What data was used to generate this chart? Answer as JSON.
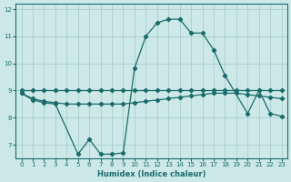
{
  "xlabel": "Humidex (Indice chaleur)",
  "background_color": "#cce9e8",
  "grid_color": "#a0c8c8",
  "line_color": "#1a6b6b",
  "ylim": [
    6.5,
    12.2
  ],
  "xlim": [
    -0.5,
    23.5
  ],
  "yticks": [
    7,
    8,
    9,
    10,
    11,
    12
  ],
  "xticks": [
    0,
    1,
    2,
    3,
    4,
    5,
    6,
    7,
    8,
    9,
    10,
    11,
    12,
    13,
    14,
    15,
    16,
    17,
    18,
    19,
    20,
    21,
    22,
    23
  ],
  "series_a_x": [
    0,
    1,
    2,
    3,
    4,
    5,
    6,
    7,
    8,
    9,
    10,
    11,
    12,
    13,
    14,
    15,
    16,
    17,
    18,
    19,
    20,
    21,
    22,
    23
  ],
  "series_a_y": [
    8.9,
    8.7,
    8.6,
    8.55,
    8.5,
    8.5,
    8.5,
    8.5,
    8.5,
    8.5,
    8.55,
    8.6,
    8.65,
    8.7,
    8.75,
    8.8,
    8.85,
    8.9,
    8.9,
    8.9,
    8.85,
    8.8,
    8.75,
    8.7
  ],
  "series_b_x": [
    0,
    1,
    2,
    3,
    4,
    5,
    6,
    7,
    8,
    9,
    10,
    11,
    12,
    13,
    14,
    15,
    16,
    17,
    18,
    19,
    20,
    21,
    22,
    23
  ],
  "series_b_y": [
    9.0,
    9.0,
    9.0,
    9.0,
    9.0,
    9.0,
    9.0,
    9.0,
    9.0,
    9.0,
    9.0,
    9.0,
    9.0,
    9.0,
    9.0,
    9.0,
    9.0,
    9.0,
    9.0,
    9.0,
    9.0,
    9.0,
    9.0,
    9.0
  ],
  "series_c_x": [
    0,
    1,
    2,
    3,
    5,
    6,
    7,
    8,
    9,
    10,
    11,
    12,
    13,
    14,
    15,
    16,
    17,
    18,
    20,
    21,
    22,
    23
  ],
  "series_c_y": [
    8.9,
    8.65,
    8.55,
    8.5,
    6.65,
    7.2,
    6.65,
    6.65,
    6.7,
    9.82,
    11.0,
    11.5,
    11.63,
    11.63,
    11.12,
    11.12,
    10.5,
    9.55,
    8.15,
    9.0,
    8.15,
    8.05
  ]
}
